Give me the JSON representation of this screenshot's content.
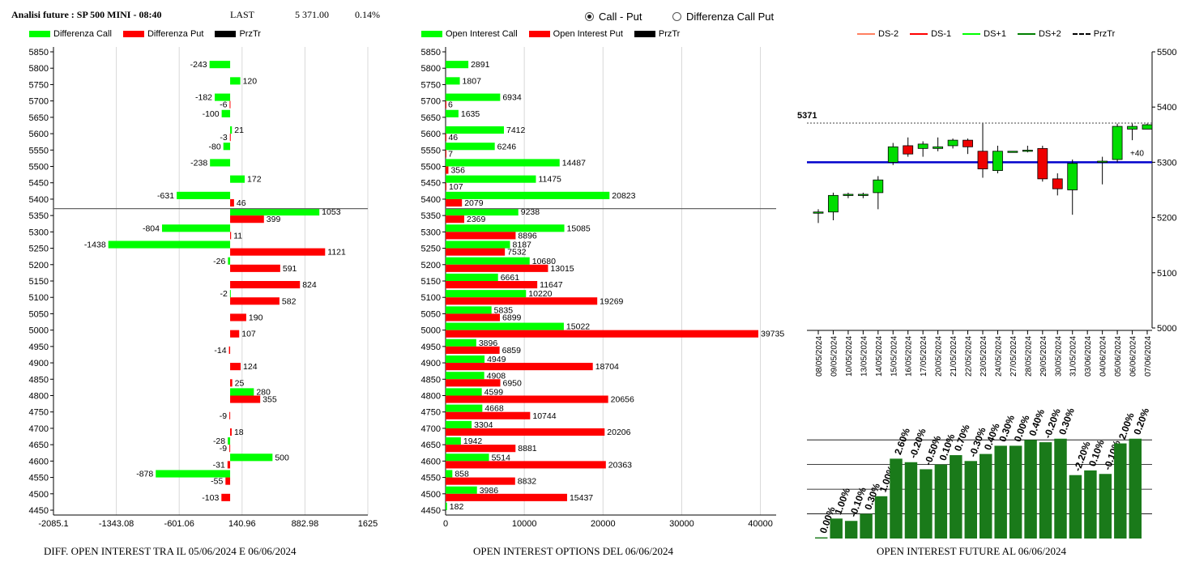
{
  "header": {
    "title": "Analisi future : SP 500 MINI - 08:40",
    "last_label": "LAST",
    "last_value": "5 371.00",
    "change": "0.14%"
  },
  "radio": {
    "option1": "Call - Put",
    "option2": "Differenza Call Put",
    "selected": 1
  },
  "legend_left": [
    {
      "label": "Differenza Call",
      "color": "#00ff00"
    },
    {
      "label": "Differenza Put",
      "color": "#ff0000"
    },
    {
      "label": "PrzTr",
      "color": "#000000"
    }
  ],
  "legend_mid": [
    {
      "label": "Open Interest Call",
      "color": "#00ff00"
    },
    {
      "label": "Open Interest Put",
      "color": "#ff0000"
    },
    {
      "label": "PrzTr",
      "color": "#000000"
    }
  ],
  "legend_right": [
    {
      "label": "DS-2",
      "color": "#ff8060",
      "style": "solid"
    },
    {
      "label": "DS-1",
      "color": "#ff0000",
      "style": "solid"
    },
    {
      "label": "DS+1",
      "color": "#00ff00",
      "style": "solid"
    },
    {
      "label": "DS+2",
      "color": "#008000",
      "style": "solid"
    },
    {
      "label": "PrzTr",
      "color": "#000000",
      "style": "dashed"
    }
  ],
  "captions": {
    "left": "DIFF. OPEN INTEREST TRA IL 05/06/2024 E 06/06/2024",
    "mid": "OPEN INTEREST OPTIONS DEL 06/06/2024",
    "right": "OPEN INTEREST FUTURE AL 06/06/2024"
  },
  "chart_data": [
    {
      "type": "bar",
      "orientation": "horizontal",
      "categories": [
        "5850",
        "5800",
        "5750",
        "5700",
        "5650",
        "5600",
        "5550",
        "5500",
        "5450",
        "5400",
        "5350",
        "5300",
        "5250",
        "5200",
        "5150",
        "5100",
        "5050",
        "5000",
        "4950",
        "4900",
        "4850",
        "4800",
        "4750",
        "4700",
        "4650",
        "4600",
        "4550",
        "4500",
        "4450"
      ],
      "series": [
        {
          "name": "Differenza Call",
          "color": "#00ff00",
          "values": [
            null,
            -243,
            120,
            -182,
            -100,
            21,
            -80,
            -238,
            172,
            -631,
            1053,
            -804,
            -1438,
            -26,
            null,
            -2,
            null,
            null,
            null,
            null,
            null,
            280,
            null,
            null,
            -28,
            500,
            -878,
            null,
            null
          ]
        },
        {
          "name": "Differenza Put",
          "color": "#ff0000",
          "values": [
            null,
            null,
            null,
            -6,
            null,
            -3,
            null,
            null,
            null,
            46,
            399,
            11,
            1121,
            591,
            824,
            582,
            190,
            107,
            -14,
            124,
            25,
            355,
            -9,
            18,
            -9,
            -31,
            -55,
            -103,
            null
          ]
        }
      ],
      "xlim": [
        -2085.1,
        1625
      ],
      "xticks": [
        "-2085.1",
        "-1343.08",
        "-601.06",
        "140.96",
        "882.98",
        "1625"
      ],
      "price_line": "5371"
    },
    {
      "type": "bar",
      "orientation": "horizontal",
      "categories": [
        "5850",
        "5800",
        "5750",
        "5700",
        "5650",
        "5600",
        "5550",
        "5500",
        "5450",
        "5400",
        "5350",
        "5300",
        "5250",
        "5200",
        "5150",
        "5100",
        "5050",
        "5000",
        "4950",
        "4900",
        "4850",
        "4800",
        "4750",
        "4700",
        "4650",
        "4600",
        "4550",
        "4500",
        "4450"
      ],
      "series": [
        {
          "name": "Open Interest Call",
          "color": "#00ff00",
          "values": [
            null,
            2891,
            1807,
            6934,
            1635,
            7412,
            6246,
            14487,
            11475,
            20823,
            9238,
            15085,
            8187,
            10680,
            6661,
            10220,
            5835,
            15022,
            3896,
            4949,
            4908,
            4599,
            4668,
            3304,
            1942,
            5514,
            858,
            3986,
            182
          ]
        },
        {
          "name": "Open Interest Put",
          "color": "#ff0000",
          "values": [
            null,
            null,
            null,
            6,
            null,
            46,
            7,
            356,
            107,
            2079,
            2369,
            8896,
            7532,
            13015,
            11647,
            19269,
            6899,
            39735,
            6859,
            18704,
            6950,
            20656,
            10744,
            20206,
            8881,
            20363,
            8832,
            15437,
            null
          ]
        }
      ],
      "xlim": [
        0,
        42000
      ],
      "xticks": [
        "0",
        "10000",
        "20000",
        "30000",
        "40000"
      ],
      "price_line": "5371"
    },
    {
      "type": "candlestick",
      "dates": [
        "08/05/2024",
        "09/05/2024",
        "10/05/2024",
        "13/05/2024",
        "14/05/2024",
        "15/05/2024",
        "16/05/2024",
        "17/05/2024",
        "20/05/2024",
        "21/05/2024",
        "22/05/2024",
        "23/05/2024",
        "24/05/2024",
        "27/05/2024",
        "28/05/2024",
        "29/05/2024",
        "30/05/2024",
        "31/05/2024",
        "03/06/2024",
        "04/06/2024",
        "05/06/2024",
        "06/06/2024",
        "07/06/2024"
      ],
      "open": [
        5210,
        5210,
        5240,
        5240,
        5245,
        5300,
        5330,
        5325,
        5325,
        5330,
        5340,
        5320,
        5285,
        5320,
        5320,
        5325,
        5270,
        5250,
        null,
        5300,
        5305,
        5360,
        5360
      ],
      "close": [
        5210,
        5240,
        5242,
        5242,
        5268,
        5328,
        5315,
        5333,
        5328,
        5340,
        5328,
        5288,
        5320,
        5320,
        5322,
        5270,
        5252,
        5298,
        null,
        5302,
        5365,
        5365,
        5368
      ],
      "high": [
        5215,
        5245,
        5245,
        5245,
        5275,
        5335,
        5345,
        5338,
        5345,
        5343,
        5343,
        5370,
        5330,
        5320,
        5330,
        5330,
        5280,
        5305,
        null,
        5310,
        5370,
        5370,
        5370
      ],
      "low": [
        5190,
        5195,
        5235,
        5235,
        5215,
        5295,
        5310,
        5310,
        5320,
        5325,
        5315,
        5272,
        5280,
        5318,
        5318,
        5265,
        5240,
        5205,
        null,
        5260,
        5300,
        5340,
        5360
      ],
      "ylim": [
        5000,
        5500
      ],
      "yticks": [
        "5500",
        "5400",
        "5300",
        "5200",
        "5100",
        "5000"
      ],
      "price_label": "5371",
      "price": 5371,
      "reference_line": 5300,
      "reference_label": "+40"
    },
    {
      "type": "bar",
      "values": [
        0.0,
        1.0,
        -0.1,
        0.3,
        1.0,
        2.6,
        -0.2,
        -0.5,
        0.1,
        0.7,
        -0.3,
        0.4,
        0.3,
        0.0,
        0.4,
        -0.2,
        0.3,
        -2.2,
        0.1,
        -0.1,
        2.0,
        0.2
      ],
      "labels": [
        "0.00%",
        "1.00%",
        "-0.10%",
        "0.30%",
        "1.00%",
        "2.60%",
        "-0.20%",
        "-0.50%",
        "0.10%",
        "0.70%",
        "-0.30%",
        "0.40%",
        "0.30%",
        "0.00%",
        "0.40%",
        "-0.20%",
        "0.30%",
        "-2.20%",
        "0.10%",
        "-0.10%",
        "2.00%",
        "0.20%"
      ],
      "levels": [
        1,
        17,
        15,
        21,
        36,
        68,
        65,
        59,
        63,
        71,
        66,
        72,
        79,
        79,
        84,
        82,
        85,
        54,
        58,
        55,
        81,
        85
      ],
      "color": "#1a7a1a"
    }
  ]
}
